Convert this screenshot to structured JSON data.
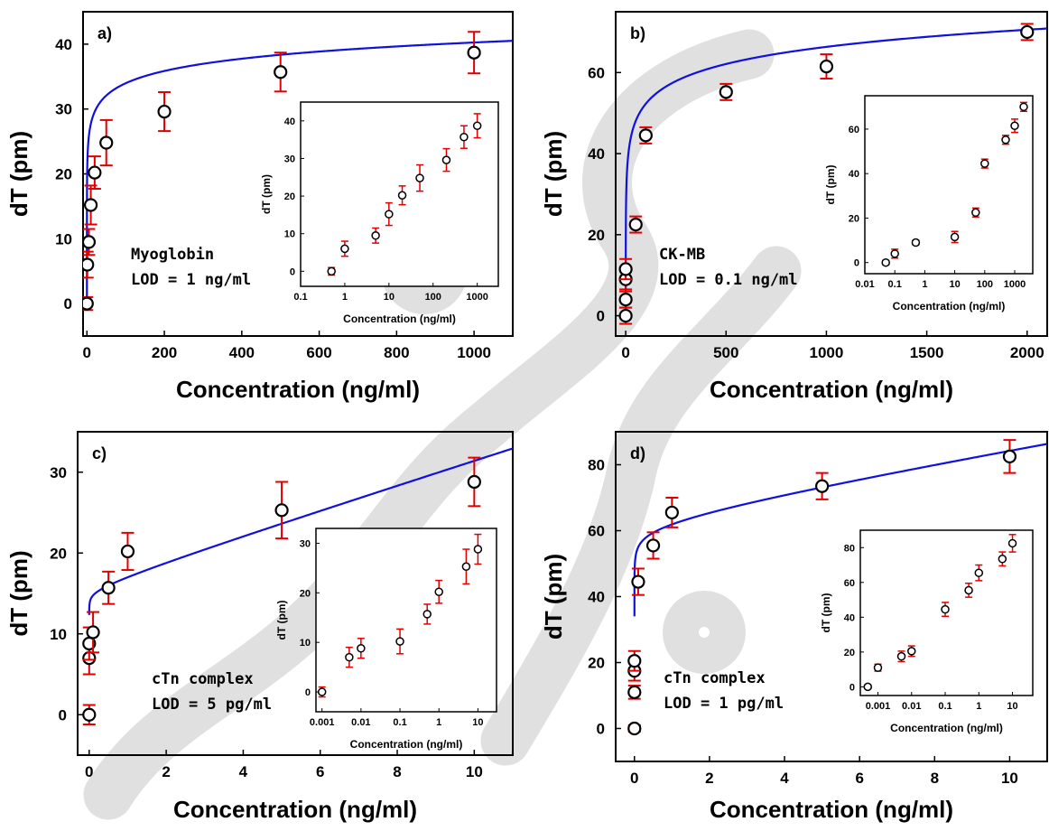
{
  "colors": {
    "fit": "#1010e0",
    "error": "#e00000",
    "marker": "#000000",
    "background": "#ffffff",
    "watermark": "#e4e4e4"
  },
  "chart_data": [
    {
      "type": "scatter",
      "panel_label": "a)",
      "xlabel": "Concentration (ng/ml)",
      "ylabel": "dT (pm)",
      "xlim": [
        -10,
        1100
      ],
      "ylim": [
        -5,
        45
      ],
      "xticks": [
        0,
        200,
        400,
        600,
        800,
        1000
      ],
      "yticks": [
        0,
        10,
        20,
        30,
        40
      ],
      "annotation": [
        "Myoglobin",
        "LOD = 1 ng/ml"
      ],
      "fit": {
        "type": "log",
        "a": 21.4,
        "b": 2.73,
        "x0": 0.0005,
        "color": "#1010e0"
      },
      "points": [
        {
          "x": 0,
          "y": 0,
          "err": 1
        },
        {
          "x": 1,
          "y": 6,
          "err": 2
        },
        {
          "x": 5,
          "y": 9.5,
          "err": 2
        },
        {
          "x": 10,
          "y": 15.2,
          "err": 3
        },
        {
          "x": 20,
          "y": 20.2,
          "err": 2.5
        },
        {
          "x": 50,
          "y": 24.8,
          "err": 3.5
        },
        {
          "x": 200,
          "y": 29.6,
          "err": 3
        },
        {
          "x": 500,
          "y": 35.7,
          "err": 3
        },
        {
          "x": 1000,
          "y": 38.7,
          "err": 3.2
        }
      ],
      "inset": {
        "xlabel": "Concentration (ng/ml)",
        "ylabel": "dT (pm)",
        "xscale": "log",
        "xlim": [
          0.1,
          3000
        ],
        "ylim": [
          -4,
          45
        ],
        "xticks": [
          0.1,
          1,
          10,
          100,
          1000
        ],
        "xticklabels": [
          "0.1",
          "1",
          "10",
          "100",
          "1000"
        ],
        "yticks": [
          0,
          10,
          20,
          30,
          40
        ],
        "points": [
          {
            "x": 0.5,
            "y": 0,
            "err": 1
          },
          {
            "x": 1,
            "y": 6,
            "err": 2
          },
          {
            "x": 5,
            "y": 9.5,
            "err": 2
          },
          {
            "x": 10,
            "y": 15.2,
            "err": 3
          },
          {
            "x": 20,
            "y": 20.2,
            "err": 2.5
          },
          {
            "x": 50,
            "y": 24.8,
            "err": 3.5
          },
          {
            "x": 200,
            "y": 29.6,
            "err": 3
          },
          {
            "x": 500,
            "y": 35.7,
            "err": 3
          },
          {
            "x": 1000,
            "y": 38.7,
            "err": 3.2
          }
        ]
      }
    },
    {
      "type": "scatter",
      "panel_label": "b)",
      "xlabel": "Concentration (ng/ml)",
      "ylabel": "dT (pm)",
      "xlim": [
        -50,
        2100
      ],
      "ylim": [
        -5,
        75
      ],
      "xticks": [
        0,
        500,
        1000,
        1500,
        2000
      ],
      "yticks": [
        0,
        20,
        40,
        60
      ],
      "annotation": [
        "CK-MB",
        "LOD = 0.1 ng/ml"
      ],
      "fit": {
        "type": "log",
        "a": 24.2,
        "b": 6.1,
        "x0": 0.018,
        "color": "#1010e0"
      },
      "points": [
        {
          "x": 0,
          "y": 0,
          "err": 2
        },
        {
          "x": 0,
          "y": 4,
          "err": 2
        },
        {
          "x": 0,
          "y": 9,
          "err": 2.5
        },
        {
          "x": 0,
          "y": 11.5,
          "err": 2.5
        },
        {
          "x": 50,
          "y": 22.5,
          "err": 2
        },
        {
          "x": 100,
          "y": 44.5,
          "err": 2
        },
        {
          "x": 500,
          "y": 55.2,
          "err": 2
        },
        {
          "x": 1000,
          "y": 61.5,
          "err": 3
        },
        {
          "x": 2000,
          "y": 70,
          "err": 2
        }
      ],
      "inset": {
        "xlabel": "Concentration (ng/ml)",
        "ylabel": "dT (pm)",
        "xscale": "log",
        "xlim": [
          0.01,
          4000
        ],
        "ylim": [
          -5,
          75
        ],
        "xticks": [
          0.01,
          0.1,
          1,
          10,
          100,
          1000
        ],
        "xticklabels": [
          "0.01",
          "0.1",
          "1",
          "10",
          "100",
          "1000"
        ],
        "yticks": [
          0,
          20,
          40,
          60
        ],
        "points": [
          {
            "x": 0.05,
            "y": 0,
            "err": 1
          },
          {
            "x": 0.1,
            "y": 4,
            "err": 2
          },
          {
            "x": 0.5,
            "y": 9,
            "err": 1
          },
          {
            "x": 10,
            "y": 11.5,
            "err": 2.5
          },
          {
            "x": 50,
            "y": 22.5,
            "err": 2
          },
          {
            "x": 100,
            "y": 44.5,
            "err": 2
          },
          {
            "x": 500,
            "y": 55.2,
            "err": 2
          },
          {
            "x": 1000,
            "y": 61.5,
            "err": 3
          },
          {
            "x": 2000,
            "y": 70,
            "err": 2
          }
        ]
      }
    },
    {
      "type": "scatter",
      "panel_label": "c)",
      "xlabel": "Concentration (ng/ml)",
      "ylabel": "dT (pm)",
      "xlim": [
        -0.3,
        11
      ],
      "ylim": [
        -5,
        35
      ],
      "xticks": [
        0,
        2,
        4,
        6,
        8,
        10
      ],
      "yticks": [
        0,
        10,
        20,
        30
      ],
      "annotation": [
        "cTn complex",
        "LOD = 5 pg/ml"
      ],
      "fit": {
        "type": "linlog",
        "a": 15.5,
        "b": 0.9,
        "c": 1.5,
        "x0": 0.0003,
        "color": "#1010e0"
      },
      "points": [
        {
          "x": 0,
          "y": 0,
          "err": 1.2
        },
        {
          "x": 0,
          "y": 7,
          "err": 2
        },
        {
          "x": 0,
          "y": 8.8,
          "err": 2
        },
        {
          "x": 0.1,
          "y": 10.2,
          "err": 2.5
        },
        {
          "x": 0.5,
          "y": 15.7,
          "err": 2
        },
        {
          "x": 1,
          "y": 20.2,
          "err": 2.3
        },
        {
          "x": 5,
          "y": 25.3,
          "err": 3.5
        },
        {
          "x": 10,
          "y": 28.8,
          "err": 3
        }
      ],
      "inset": {
        "xlabel": "Concentration (ng/ml)",
        "ylabel": "dT (pm)",
        "xscale": "log",
        "xlim": [
          0.0007,
          30
        ],
        "ylim": [
          -4,
          33
        ],
        "xticks": [
          0.001,
          0.01,
          0.1,
          1,
          10
        ],
        "xticklabels": [
          "0.001",
          "0.01",
          "0.1",
          "1",
          "10"
        ],
        "yticks": [
          0,
          10,
          20,
          30
        ],
        "points": [
          {
            "x": 0.001,
            "y": 0,
            "err": 1
          },
          {
            "x": 0.005,
            "y": 7,
            "err": 2
          },
          {
            "x": 0.01,
            "y": 8.8,
            "err": 2
          },
          {
            "x": 0.1,
            "y": 10.2,
            "err": 2.5
          },
          {
            "x": 0.5,
            "y": 15.7,
            "err": 2
          },
          {
            "x": 1,
            "y": 20.2,
            "err": 2.3
          },
          {
            "x": 5,
            "y": 25.3,
            "err": 3.5
          },
          {
            "x": 10,
            "y": 28.8,
            "err": 3
          }
        ]
      }
    },
    {
      "type": "scatter",
      "panel_label": "d)",
      "xlabel": "Concentration (ng/ml)",
      "ylabel": "dT (pm)",
      "xlim": [
        -0.5,
        11
      ],
      "ylim": [
        -10,
        90
      ],
      "xticks": [
        0,
        2,
        4,
        6,
        8,
        10
      ],
      "yticks": [
        0,
        20,
        40,
        60,
        80
      ],
      "annotation": [
        "cTn complex",
        "LOD = 1 pg/ml"
      ],
      "fit": {
        "type": "linlog",
        "a": 60,
        "b": 5.2,
        "c": 1.9,
        "x0": 1e-05,
        "color": "#1010e0"
      },
      "points": [
        {
          "x": 0,
          "y": 0,
          "err": 1
        },
        {
          "x": 0,
          "y": 11,
          "err": 2
        },
        {
          "x": 0,
          "y": 17.5,
          "err": 3
        },
        {
          "x": 0,
          "y": 20.5,
          "err": 3
        },
        {
          "x": 0.1,
          "y": 44.5,
          "err": 4
        },
        {
          "x": 0.5,
          "y": 55.5,
          "err": 4
        },
        {
          "x": 1,
          "y": 65.5,
          "err": 4.5
        },
        {
          "x": 5,
          "y": 73.5,
          "err": 4
        },
        {
          "x": 10,
          "y": 82.5,
          "err": 5
        }
      ],
      "inset": {
        "xlabel": "Concentration (ng/ml)",
        "ylabel": "dT (pm)",
        "xscale": "log",
        "xlim": [
          0.0003,
          40
        ],
        "ylim": [
          -5,
          90
        ],
        "xticks": [
          0.001,
          0.01,
          0.1,
          1,
          10
        ],
        "xticklabels": [
          "0.001",
          "0.01",
          "0.1",
          "1",
          "10"
        ],
        "yticks": [
          0,
          20,
          40,
          60,
          80
        ],
        "points": [
          {
            "x": 0.0005,
            "y": 0,
            "err": 1
          },
          {
            "x": 0.001,
            "y": 11,
            "err": 2
          },
          {
            "x": 0.005,
            "y": 17.5,
            "err": 3
          },
          {
            "x": 0.01,
            "y": 20.5,
            "err": 3
          },
          {
            "x": 0.1,
            "y": 44.5,
            "err": 4
          },
          {
            "x": 0.5,
            "y": 55.5,
            "err": 4
          },
          {
            "x": 1,
            "y": 65.5,
            "err": 4.5
          },
          {
            "x": 5,
            "y": 73.5,
            "err": 4
          },
          {
            "x": 10,
            "y": 82.5,
            "err": 5
          }
        ]
      }
    }
  ]
}
